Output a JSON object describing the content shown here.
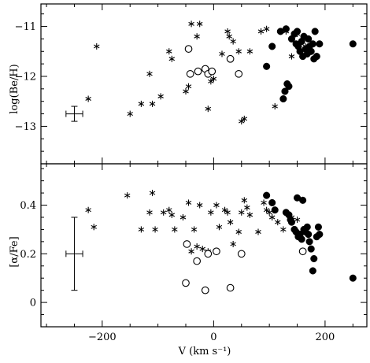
{
  "chart_data": [
    {
      "type": "scatter",
      "panel": "top",
      "ylabel": "log(Be/H)",
      "xlim": [
        -310,
        275
      ],
      "ylim": [
        -13.75,
        -10.55
      ],
      "yticks": [
        -11,
        -12,
        -13
      ],
      "grid": false,
      "series": [
        {
          "marker": "asterisk",
          "points": [
            [
              -210,
              -11.4
            ],
            [
              -225,
              -12.45
            ],
            [
              -150,
              -12.75
            ],
            [
              -130,
              -12.55
            ],
            [
              -115,
              -11.95
            ],
            [
              -110,
              -12.55
            ],
            [
              -95,
              -12.4
            ],
            [
              -80,
              -11.5
            ],
            [
              -75,
              -11.65
            ],
            [
              -50,
              -12.3
            ],
            [
              -45,
              -12.2
            ],
            [
              -40,
              -10.95
            ],
            [
              -25,
              -10.95
            ],
            [
              -30,
              -11.2
            ],
            [
              -10,
              -12.65
            ],
            [
              -5,
              -12.1
            ],
            [
              0,
              -12.05
            ],
            [
              15,
              -11.55
            ],
            [
              25,
              -11.1
            ],
            [
              28,
              -11.2
            ],
            [
              35,
              -11.3
            ],
            [
              45,
              -11.5
            ],
            [
              50,
              -12.9
            ],
            [
              55,
              -12.85
            ],
            [
              65,
              -11.5
            ],
            [
              85,
              -11.1
            ],
            [
              95,
              -11.05
            ],
            [
              110,
              -12.6
            ],
            [
              130,
              -11.1
            ],
            [
              140,
              -11.6
            ],
            [
              150,
              -11.15
            ],
            [
              165,
              -11.4
            ]
          ]
        },
        {
          "marker": "open-circle",
          "points": [
            [
              -45,
              -11.45
            ],
            [
              -42,
              -11.95
            ],
            [
              -28,
              -11.9
            ],
            [
              -15,
              -11.85
            ],
            [
              -10,
              -11.95
            ],
            [
              -3,
              -11.9
            ],
            [
              30,
              -11.65
            ],
            [
              45,
              -11.95
            ]
          ]
        },
        {
          "marker": "filled-circle",
          "points": [
            [
              95,
              -11.8
            ],
            [
              105,
              -11.4
            ],
            [
              120,
              -11.1
            ],
            [
              125,
              -12.45
            ],
            [
              128,
              -12.3
            ],
            [
              130,
              -11.05
            ],
            [
              132,
              -12.15
            ],
            [
              135,
              -12.2
            ],
            [
              140,
              -11.25
            ],
            [
              145,
              -11.15
            ],
            [
              148,
              -11.35
            ],
            [
              150,
              -11.1
            ],
            [
              152,
              -11.4
            ],
            [
              155,
              -11.5
            ],
            [
              158,
              -11.3
            ],
            [
              160,
              -11.6
            ],
            [
              162,
              -11.2
            ],
            [
              165,
              -11.45
            ],
            [
              168,
              -11.55
            ],
            [
              170,
              -11.25
            ],
            [
              172,
              -11.4
            ],
            [
              175,
              -11.5
            ],
            [
              178,
              -11.35
            ],
            [
              180,
              -11.65
            ],
            [
              182,
              -11.1
            ],
            [
              185,
              -11.6
            ],
            [
              190,
              -11.35
            ],
            [
              250,
              -11.35
            ]
          ]
        }
      ],
      "error_bar": {
        "x": -250,
        "y": -12.75,
        "xerr": 15,
        "yerr": 0.15
      }
    },
    {
      "type": "scatter",
      "panel": "bottom",
      "xlabel": "V (km s⁻¹)",
      "ylabel": "[α/Fe]",
      "xlim": [
        -310,
        275
      ],
      "ylim": [
        -0.1,
        0.57
      ],
      "xticks": [
        -200,
        0,
        200
      ],
      "yticks": [
        0,
        0.2,
        0.4
      ],
      "grid": false,
      "series": [
        {
          "marker": "asterisk",
          "points": [
            [
              -225,
              0.38
            ],
            [
              -215,
              0.31
            ],
            [
              -155,
              0.44
            ],
            [
              -130,
              0.3
            ],
            [
              -115,
              0.37
            ],
            [
              -110,
              0.45
            ],
            [
              -105,
              0.3
            ],
            [
              -90,
              0.37
            ],
            [
              -80,
              0.38
            ],
            [
              -75,
              0.36
            ],
            [
              -70,
              0.3
            ],
            [
              -55,
              0.35
            ],
            [
              -45,
              0.41
            ],
            [
              -40,
              0.21
            ],
            [
              -35,
              0.3
            ],
            [
              -30,
              0.23
            ],
            [
              -25,
              0.4
            ],
            [
              -20,
              0.22
            ],
            [
              -10,
              0.21
            ],
            [
              -5,
              0.37
            ],
            [
              5,
              0.4
            ],
            [
              10,
              0.31
            ],
            [
              20,
              0.38
            ],
            [
              25,
              0.37
            ],
            [
              30,
              0.33
            ],
            [
              35,
              0.24
            ],
            [
              45,
              0.29
            ],
            [
              50,
              0.37
            ],
            [
              55,
              0.42
            ],
            [
              60,
              0.39
            ],
            [
              65,
              0.36
            ],
            [
              80,
              0.29
            ],
            [
              90,
              0.41
            ],
            [
              95,
              0.38
            ],
            [
              100,
              0.37
            ],
            [
              105,
              0.35
            ],
            [
              115,
              0.33
            ],
            [
              125,
              0.3
            ],
            [
              140,
              0.35
            ],
            [
              150,
              0.34
            ]
          ]
        },
        {
          "marker": "open-circle",
          "points": [
            [
              -48,
              0.24
            ],
            [
              -50,
              0.08
            ],
            [
              -30,
              0.17
            ],
            [
              -15,
              0.05
            ],
            [
              -10,
              0.2
            ],
            [
              5,
              0.21
            ],
            [
              30,
              0.06
            ],
            [
              50,
              0.2
            ],
            [
              160,
              0.21
            ]
          ]
        },
        {
          "marker": "filled-circle",
          "points": [
            [
              95,
              0.44
            ],
            [
              105,
              0.41
            ],
            [
              110,
              0.38
            ],
            [
              130,
              0.37
            ],
            [
              135,
              0.36
            ],
            [
              138,
              0.34
            ],
            [
              140,
              0.33
            ],
            [
              145,
              0.3
            ],
            [
              148,
              0.29
            ],
            [
              150,
              0.43
            ],
            [
              152,
              0.27
            ],
            [
              155,
              0.28
            ],
            [
              158,
              0.26
            ],
            [
              160,
              0.42
            ],
            [
              162,
              0.3
            ],
            [
              165,
              0.29
            ],
            [
              168,
              0.31
            ],
            [
              170,
              0.28
            ],
            [
              172,
              0.25
            ],
            [
              175,
              0.22
            ],
            [
              178,
              0.13
            ],
            [
              180,
              0.18
            ],
            [
              185,
              0.27
            ],
            [
              188,
              0.31
            ],
            [
              190,
              0.28
            ],
            [
              250,
              0.1
            ]
          ]
        }
      ],
      "error_bar": {
        "x": -250,
        "y": 0.2,
        "xerr": 15,
        "yerr": 0.15
      }
    }
  ]
}
